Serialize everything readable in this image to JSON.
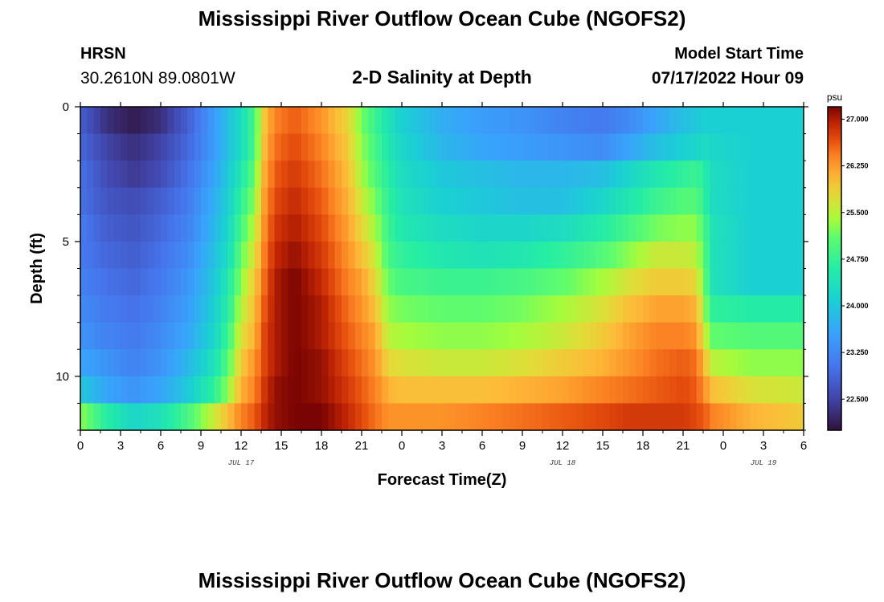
{
  "header": {
    "title": "Mississippi River Outflow Ocean Cube (NGOFS2)",
    "station_name": "HRSN",
    "station_coords": "30.2610N  89.0801W",
    "plot_title": "2-D Salinity at Depth",
    "model_label": "Model Start Time",
    "model_time": "07/17/2022 Hour 09"
  },
  "footer": {
    "title": "Mississippi River Outflow Ocean Cube (NGOFS2)"
  },
  "chart_data": {
    "type": "heatmap",
    "xlabel": "Forecast Time(Z)",
    "ylabel": "Depth (ft)",
    "x_range_hours": [
      0,
      54
    ],
    "x_ticks": [
      "0",
      "3",
      "6",
      "9",
      "12",
      "15",
      "18",
      "21",
      "0",
      "3",
      "6",
      "9",
      "12",
      "15",
      "18",
      "21",
      "0",
      "3",
      "6"
    ],
    "date_labels": [
      {
        "text": "JUL 17",
        "hour": 12
      },
      {
        "text": "JUL 18",
        "hour": 36
      },
      {
        "text": "JUL 19",
        "hour": 51
      }
    ],
    "y_range": [
      0,
      12
    ],
    "y_ticks": [
      "0",
      "5",
      "10"
    ],
    "y_tick_values": [
      0,
      5,
      10
    ],
    "colorbar": {
      "unit": "psu",
      "min": 22.0,
      "max": 27.2,
      "labels": [
        "27.000",
        "26.250",
        "25.500",
        "24.750",
        "24.000",
        "23.250",
        "22.500"
      ],
      "label_values": [
        27.0,
        26.25,
        25.5,
        24.75,
        24.0,
        23.25,
        22.5
      ]
    },
    "depth_levels_ft": [
      0.5,
      1.5,
      2.5,
      3.5,
      4.5,
      5.5,
      6.5,
      7.5,
      8.5,
      9.5,
      10.5,
      11.5
    ],
    "time_keyframes_hours": [
      0,
      2,
      4,
      6,
      8,
      10,
      11,
      12,
      13,
      13.7,
      14.5,
      16,
      18,
      20,
      21,
      22,
      23,
      24,
      27,
      30,
      33,
      36,
      39,
      41,
      43,
      45,
      46,
      46.6,
      47.2,
      50,
      54
    ],
    "salinity_keyframes_psu": [
      [
        22.8,
        22.3,
        22.1,
        22.3,
        22.8,
        23.5,
        23.9,
        24.3,
        24.9,
        25.9,
        26.4,
        26.6,
        26.3,
        25.8,
        25.2,
        24.8,
        24.4,
        24.1,
        23.7,
        23.5,
        23.4,
        23.2,
        23.1,
        23.3,
        23.6,
        23.9,
        24.0,
        24.1,
        24.1,
        24.1,
        24.1
      ],
      [
        22.9,
        22.5,
        22.3,
        22.5,
        22.9,
        23.5,
        23.9,
        24.3,
        24.9,
        26.0,
        26.5,
        26.7,
        26.4,
        25.9,
        25.3,
        24.9,
        24.5,
        24.2,
        23.8,
        23.6,
        23.5,
        23.4,
        23.3,
        23.6,
        23.9,
        24.1,
        24.2,
        24.3,
        24.2,
        24.1,
        24.1
      ],
      [
        23.0,
        22.6,
        22.4,
        22.6,
        23.0,
        23.6,
        24.0,
        24.5,
        25.1,
        26.1,
        26.6,
        26.8,
        26.5,
        26.0,
        25.4,
        25.0,
        24.6,
        24.3,
        24.0,
        23.9,
        23.8,
        23.8,
        23.9,
        24.2,
        24.5,
        24.7,
        24.8,
        24.6,
        24.3,
        24.1,
        24.1
      ],
      [
        23.0,
        22.7,
        22.6,
        22.8,
        23.1,
        23.7,
        24.1,
        24.7,
        25.3,
        26.2,
        26.7,
        26.9,
        26.6,
        26.1,
        25.6,
        25.2,
        24.7,
        24.4,
        24.1,
        24.0,
        23.9,
        23.9,
        24.2,
        24.5,
        24.8,
        25.0,
        25.0,
        24.7,
        24.3,
        24.1,
        24.1
      ],
      [
        23.1,
        22.8,
        22.7,
        22.9,
        23.2,
        23.8,
        24.2,
        24.9,
        25.5,
        26.3,
        26.8,
        27.0,
        26.7,
        26.2,
        25.8,
        25.4,
        24.8,
        24.5,
        24.3,
        24.2,
        24.2,
        24.3,
        24.6,
        24.9,
        25.2,
        25.3,
        25.3,
        24.9,
        24.4,
        24.1,
        24.1
      ],
      [
        23.1,
        22.9,
        22.8,
        23.0,
        23.3,
        23.9,
        24.3,
        25.1,
        25.7,
        26.4,
        26.9,
        27.1,
        26.8,
        26.3,
        26.0,
        25.6,
        24.9,
        24.7,
        24.5,
        24.4,
        24.5,
        24.7,
        25.0,
        25.3,
        25.6,
        25.6,
        25.5,
        25.0,
        24.4,
        24.1,
        24.1
      ],
      [
        23.2,
        23.0,
        22.9,
        23.1,
        23.4,
        24.0,
        24.5,
        25.3,
        25.9,
        26.5,
        27.0,
        27.2,
        26.9,
        26.4,
        26.2,
        25.8,
        25.1,
        24.9,
        24.8,
        24.8,
        24.9,
        25.1,
        25.4,
        25.7,
        25.9,
        25.9,
        25.8,
        25.1,
        24.4,
        24.1,
        24.1
      ],
      [
        23.3,
        23.1,
        23.0,
        23.2,
        23.5,
        24.1,
        24.6,
        25.5,
        26.0,
        26.6,
        27.0,
        27.2,
        27.0,
        26.5,
        26.3,
        26.0,
        25.3,
        25.2,
        25.1,
        25.1,
        25.2,
        25.4,
        25.7,
        26.0,
        26.2,
        26.2,
        26.1,
        25.3,
        24.7,
        24.6,
        24.6
      ],
      [
        23.4,
        23.2,
        23.1,
        23.3,
        23.6,
        24.2,
        24.8,
        25.7,
        26.1,
        26.7,
        27.0,
        27.2,
        27.0,
        26.6,
        26.4,
        26.2,
        25.5,
        25.4,
        25.3,
        25.3,
        25.4,
        25.6,
        25.9,
        26.2,
        26.4,
        26.4,
        26.3,
        25.6,
        25.1,
        25.0,
        25.0
      ],
      [
        23.6,
        23.4,
        23.2,
        23.4,
        23.8,
        24.4,
        25.0,
        25.9,
        26.3,
        26.7,
        27.0,
        27.2,
        27.1,
        26.7,
        26.5,
        26.3,
        25.8,
        25.7,
        25.6,
        25.6,
        25.7,
        25.9,
        26.1,
        26.3,
        26.5,
        26.6,
        26.5,
        26.0,
        25.5,
        25.3,
        25.3
      ],
      [
        24.0,
        23.6,
        23.4,
        23.6,
        24.0,
        24.7,
        25.3,
        26.1,
        26.4,
        26.8,
        27.1,
        27.2,
        27.1,
        26.8,
        26.6,
        26.4,
        26.1,
        26.0,
        26.0,
        26.0,
        26.1,
        26.2,
        26.4,
        26.5,
        26.6,
        26.7,
        26.6,
        26.3,
        26.0,
        25.7,
        25.6
      ],
      [
        25.3,
        24.6,
        24.2,
        24.4,
        24.9,
        25.6,
        26.0,
        26.4,
        26.6,
        26.9,
        27.1,
        27.2,
        27.2,
        26.9,
        26.7,
        26.5,
        26.3,
        26.3,
        26.3,
        26.4,
        26.5,
        26.6,
        26.7,
        26.8,
        26.8,
        26.8,
        26.7,
        26.6,
        26.4,
        26.1,
        25.9
      ]
    ],
    "grid": false,
    "legend": "colorbar-right"
  }
}
